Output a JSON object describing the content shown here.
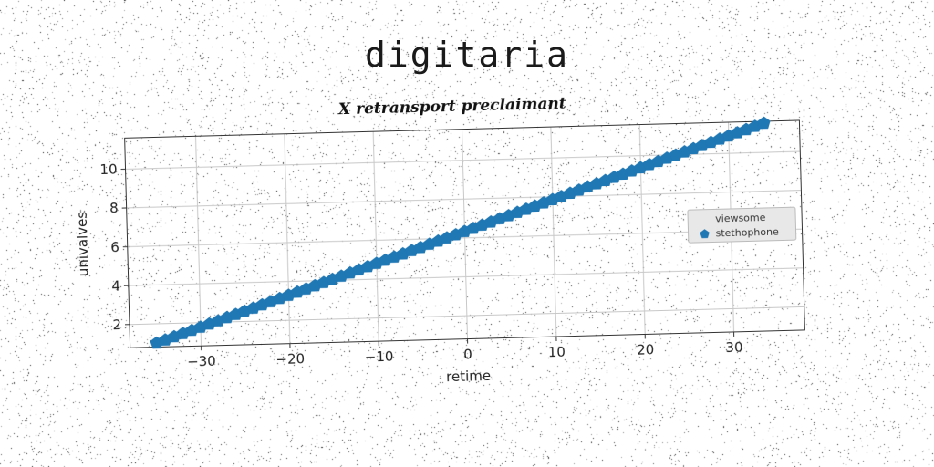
{
  "page_title": "digitaria",
  "chart_data": {
    "type": "scatter",
    "title": "X retransport preclaimant",
    "xlabel": "retime",
    "ylabel": "univalves",
    "xlim": [
      -38,
      38
    ],
    "ylim": [
      0.8,
      11.6
    ],
    "xticks": [
      -30,
      -20,
      -10,
      0,
      10,
      20,
      30
    ],
    "yticks": [
      2,
      4,
      6,
      8,
      10
    ],
    "grid": true,
    "legend_position": "center-right",
    "series": [
      {
        "name": "viewsome",
        "style": "hidden",
        "color": "#ffffff",
        "x": [],
        "y": []
      },
      {
        "name": "stethophone",
        "style": "pentagon-marker",
        "color": "#1f77b4",
        "x_start": -35,
        "x_end": 34,
        "x_step": 1,
        "y_start": 1.0,
        "y_end": 11.5
      }
    ]
  }
}
